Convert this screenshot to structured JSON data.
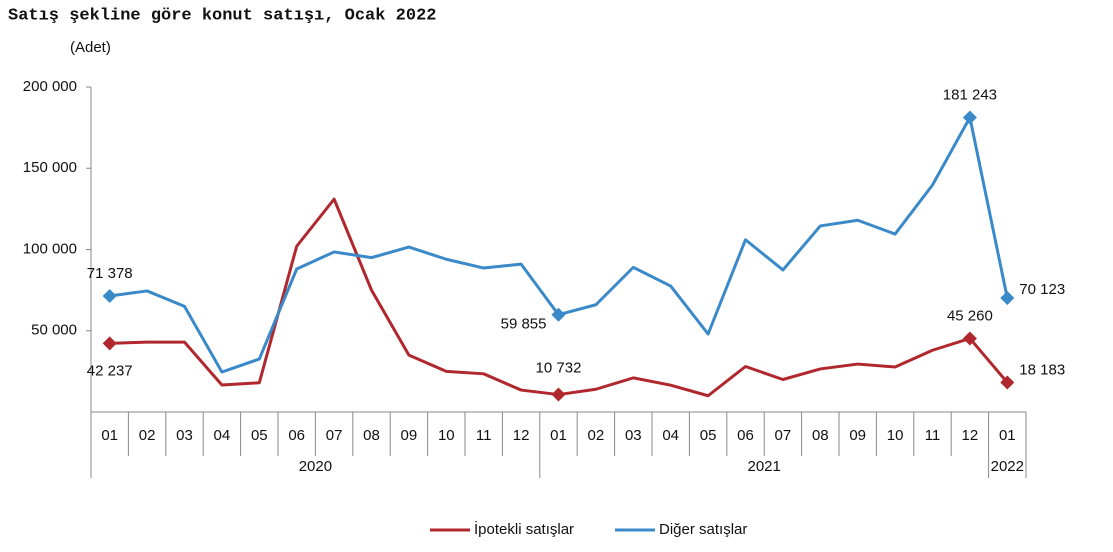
{
  "chart_data": {
    "type": "line",
    "title": "Satış şekline göre konut satışı, Ocak 2022",
    "y_label": "(Adet)",
    "categories": [
      "01",
      "02",
      "03",
      "04",
      "05",
      "06",
      "07",
      "08",
      "09",
      "10",
      "11",
      "12",
      "01",
      "02",
      "03",
      "04",
      "05",
      "06",
      "07",
      "08",
      "09",
      "10",
      "11",
      "12",
      "01"
    ],
    "x_groups": [
      {
        "label": "2020",
        "size": 12
      },
      {
        "label": "2021",
        "size": 12
      },
      {
        "label": "2022",
        "size": 1
      }
    ],
    "series": [
      {
        "name": "İpotekli satışlar",
        "color": "#b0282d",
        "values": [
          42237,
          43000,
          43000,
          16600,
          18000,
          102000,
          131000,
          75000,
          35000,
          25000,
          23500,
          13500,
          10732,
          14000,
          21000,
          16500,
          10000,
          28000,
          20000,
          26500,
          29500,
          27700,
          38000,
          45260,
          18183
        ],
        "value_labels": [
          "42 237",
          null,
          null,
          null,
          null,
          null,
          null,
          null,
          null,
          null,
          null,
          null,
          "10 732",
          null,
          null,
          null,
          null,
          null,
          null,
          null,
          null,
          null,
          null,
          "45 260",
          "18 183"
        ]
      },
      {
        "name": "Diğer satışlar",
        "color": "#3a89c9",
        "values": [
          71378,
          74500,
          65000,
          24600,
          32600,
          88000,
          98500,
          95000,
          101500,
          94000,
          88600,
          91000,
          59855,
          66000,
          89000,
          77500,
          48000,
          106000,
          87400,
          114500,
          118000,
          109500,
          139700,
          181243,
          70123
        ],
        "value_labels": [
          "71 378",
          null,
          null,
          null,
          null,
          null,
          null,
          null,
          null,
          null,
          null,
          null,
          "59 855",
          null,
          null,
          null,
          null,
          null,
          null,
          null,
          null,
          null,
          null,
          "181 243",
          "70 123"
        ]
      }
    ],
    "ylim": [
      0,
      200000
    ],
    "yticks": [
      {
        "value": 50000,
        "label": "50 000"
      },
      {
        "value": 100000,
        "label": "100 000"
      },
      {
        "value": 150000,
        "label": "150 000"
      },
      {
        "value": 200000,
        "label": "200 000"
      }
    ],
    "grid": false
  }
}
